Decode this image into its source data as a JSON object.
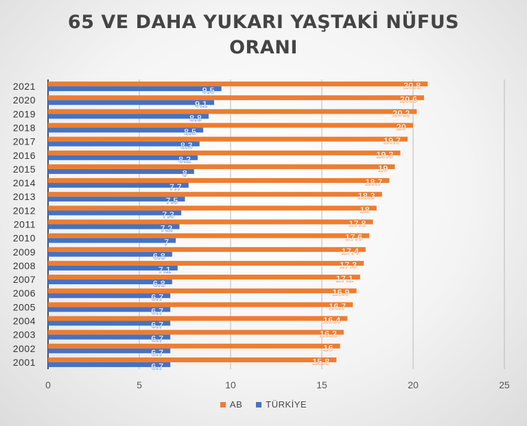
{
  "chart_data": {
    "type": "bar",
    "orientation": "horizontal",
    "title": "65 VE DAHA YUKARI YAŞTAKİ NÜFUS ORANI",
    "title_lines": [
      "65 VE DAHA YUKARI YAŞTAKİ NÜFUS",
      "ORANI"
    ],
    "categories": [
      "2001",
      "2002",
      "2003",
      "2004",
      "2005",
      "2006",
      "2007",
      "2008",
      "2009",
      "2010",
      "2011",
      "2012",
      "2013",
      "2014",
      "2015",
      "2016",
      "2017",
      "2018",
      "2019",
      "2020",
      "2021"
    ],
    "series": [
      {
        "name": "AB",
        "color": "#ED7D31",
        "values": [
          15.8,
          16,
          16.2,
          16.4,
          16.7,
          16.9,
          17.1,
          17.3,
          17.4,
          17.6,
          17.8,
          18,
          18.3,
          18.7,
          19,
          19.3,
          19.7,
          20,
          20.2,
          20.6,
          20.8
        ]
      },
      {
        "name": "TÜRKİYE",
        "color": "#4472C4",
        "values": [
          6.7,
          6.7,
          6.7,
          6.7,
          6.7,
          6.7,
          6.8,
          7.1,
          6.8,
          7,
          7.2,
          7.3,
          7.5,
          7.7,
          8,
          8.2,
          8.3,
          8.5,
          8.8,
          9.1,
          9.5
        ]
      }
    ],
    "xlim": [
      0,
      25
    ],
    "xticks": [
      "0",
      "5",
      "10",
      "15",
      "20",
      "25"
    ],
    "grid": true,
    "legend_position": "bottom",
    "data_labels": true
  }
}
